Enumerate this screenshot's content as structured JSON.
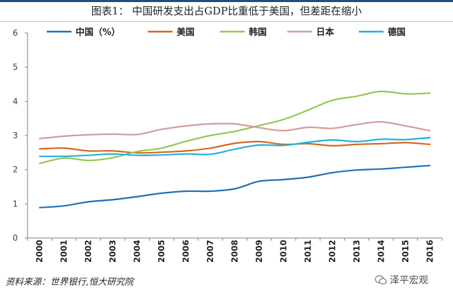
{
  "chart_data": {
    "type": "line",
    "title": "图表1：  中国研发支出占GDP比重低于美国，但差距在缩小",
    "xlabel": "",
    "ylabel": "",
    "ylim": [
      0,
      6
    ],
    "yticks": [
      0,
      1,
      2,
      3,
      4,
      5,
      6
    ],
    "categories": [
      "2000",
      "2001",
      "2002",
      "2003",
      "2004",
      "2005",
      "2006",
      "2007",
      "2008",
      "2009",
      "2010",
      "2011",
      "2012",
      "2013",
      "2014",
      "2015",
      "2016"
    ],
    "legend_position": "top",
    "series": [
      {
        "name": "中国（%）",
        "color": "#1f6fb4",
        "values": [
          0.89,
          0.94,
          1.06,
          1.12,
          1.21,
          1.31,
          1.37,
          1.37,
          1.44,
          1.66,
          1.71,
          1.78,
          1.91,
          1.99,
          2.02,
          2.07,
          2.12
        ]
      },
      {
        "name": "美国",
        "color": "#d4671a",
        "values": [
          2.61,
          2.63,
          2.55,
          2.55,
          2.49,
          2.51,
          2.55,
          2.63,
          2.77,
          2.82,
          2.74,
          2.76,
          2.7,
          2.74,
          2.76,
          2.79,
          2.74
        ]
      },
      {
        "name": "韩国",
        "color": "#92c94a",
        "values": [
          2.18,
          2.34,
          2.27,
          2.35,
          2.53,
          2.63,
          2.83,
          3.0,
          3.12,
          3.29,
          3.47,
          3.74,
          4.03,
          4.15,
          4.29,
          4.22,
          4.24
        ]
      },
      {
        "name": "日本",
        "color": "#d49a9a",
        "values": [
          2.91,
          2.98,
          3.02,
          3.04,
          3.03,
          3.18,
          3.28,
          3.34,
          3.34,
          3.23,
          3.14,
          3.24,
          3.21,
          3.32,
          3.4,
          3.28,
          3.14
        ]
      },
      {
        "name": "德国",
        "color": "#1fb0e0",
        "values": [
          2.39,
          2.39,
          2.42,
          2.46,
          2.42,
          2.43,
          2.46,
          2.45,
          2.6,
          2.72,
          2.71,
          2.8,
          2.87,
          2.82,
          2.89,
          2.88,
          2.94
        ]
      }
    ]
  },
  "source": "资料来源：世界银行,恒大研究院",
  "watermark": "泽平宏观"
}
